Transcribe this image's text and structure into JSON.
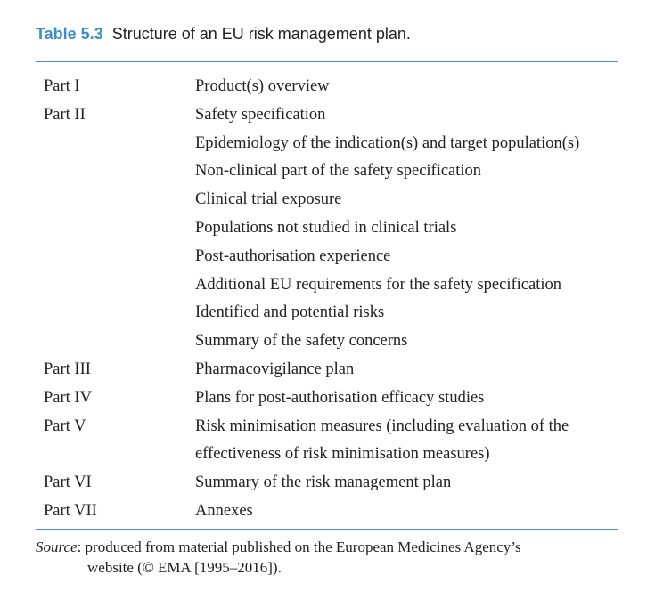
{
  "caption": {
    "label": "Table 5.3",
    "text": "Structure of an EU risk management plan."
  },
  "rows": [
    {
      "part": "Part I",
      "content": "Product(s) overview"
    },
    {
      "part": "Part II",
      "content": "Safety specification"
    },
    {
      "part": "",
      "content": "Epidemiology of the indication(s) and target population(s)"
    },
    {
      "part": "",
      "content": "Non-clinical part of the safety specification"
    },
    {
      "part": "",
      "content": "Clinical trial exposure"
    },
    {
      "part": "",
      "content": "Populations not studied in clinical trials"
    },
    {
      "part": "",
      "content": "Post-authorisation experience"
    },
    {
      "part": "",
      "content": "Additional EU requirements for the safety specification"
    },
    {
      "part": "",
      "content": "Identified and potential risks"
    },
    {
      "part": "",
      "content": "Summary of the safety concerns"
    },
    {
      "part": "Part III",
      "content": "Pharmacovigilance plan"
    },
    {
      "part": "Part IV",
      "content": "Plans for post-authorisation efficacy studies"
    },
    {
      "part": "Part V",
      "content": "Risk minimisation measures (including evaluation of the"
    },
    {
      "part": "",
      "content": "effectiveness of risk minimisation measures)"
    },
    {
      "part": "Part VI",
      "content": "Summary of the risk management plan"
    },
    {
      "part": "Part VII",
      "content": "Annexes"
    }
  ],
  "source": {
    "label": "Source",
    "line1": ": produced from material published on the European Medicines Agency’s",
    "line2": "website (© EMA [1995–2016])."
  },
  "colors": {
    "caption_label": "#3b8fc6",
    "rule": "#4a90c2",
    "text": "#222222"
  }
}
